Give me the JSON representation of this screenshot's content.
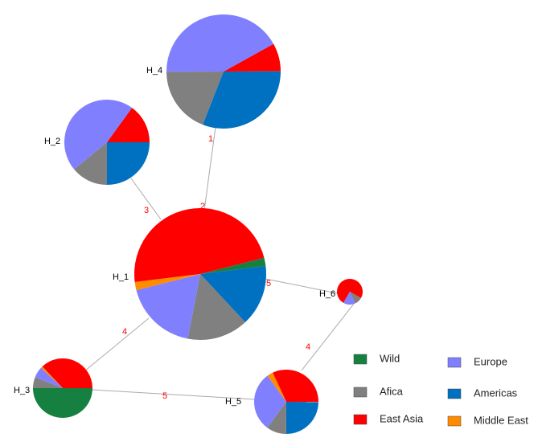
{
  "nodes": [
    {
      "label": "H_1",
      "values": [
        2,
        15,
        48,
        18,
        15,
        2
      ]
    },
    {
      "label": "H_2",
      "values": [
        0,
        14,
        15,
        46,
        25,
        0
      ]
    },
    {
      "label": "H_4",
      "values": [
        0,
        19,
        8,
        42,
        31,
        0
      ]
    },
    {
      "label": "H_6",
      "values": [
        0,
        10,
        75,
        15,
        0,
        0
      ]
    },
    {
      "label": "H_3",
      "values": [
        50,
        6,
        37,
        6,
        0,
        1
      ]
    },
    {
      "label": "H_5",
      "values": [
        0,
        10,
        32,
        30,
        25,
        3
      ]
    }
  ],
  "edge_labels": [
    1,
    2,
    3,
    5,
    4,
    5,
    4
  ],
  "legend": [
    {
      "name": "Wild",
      "color": "#168040"
    },
    {
      "name": "Afica",
      "color": "#808080"
    },
    {
      "name": "East Asia",
      "color": "#ff0000"
    },
    {
      "name": "Europe",
      "color": "#8080ff"
    },
    {
      "name": "Americas",
      "color": "#0070c0"
    },
    {
      "name": "Middle East",
      "color": "#ff8c00"
    }
  ]
}
